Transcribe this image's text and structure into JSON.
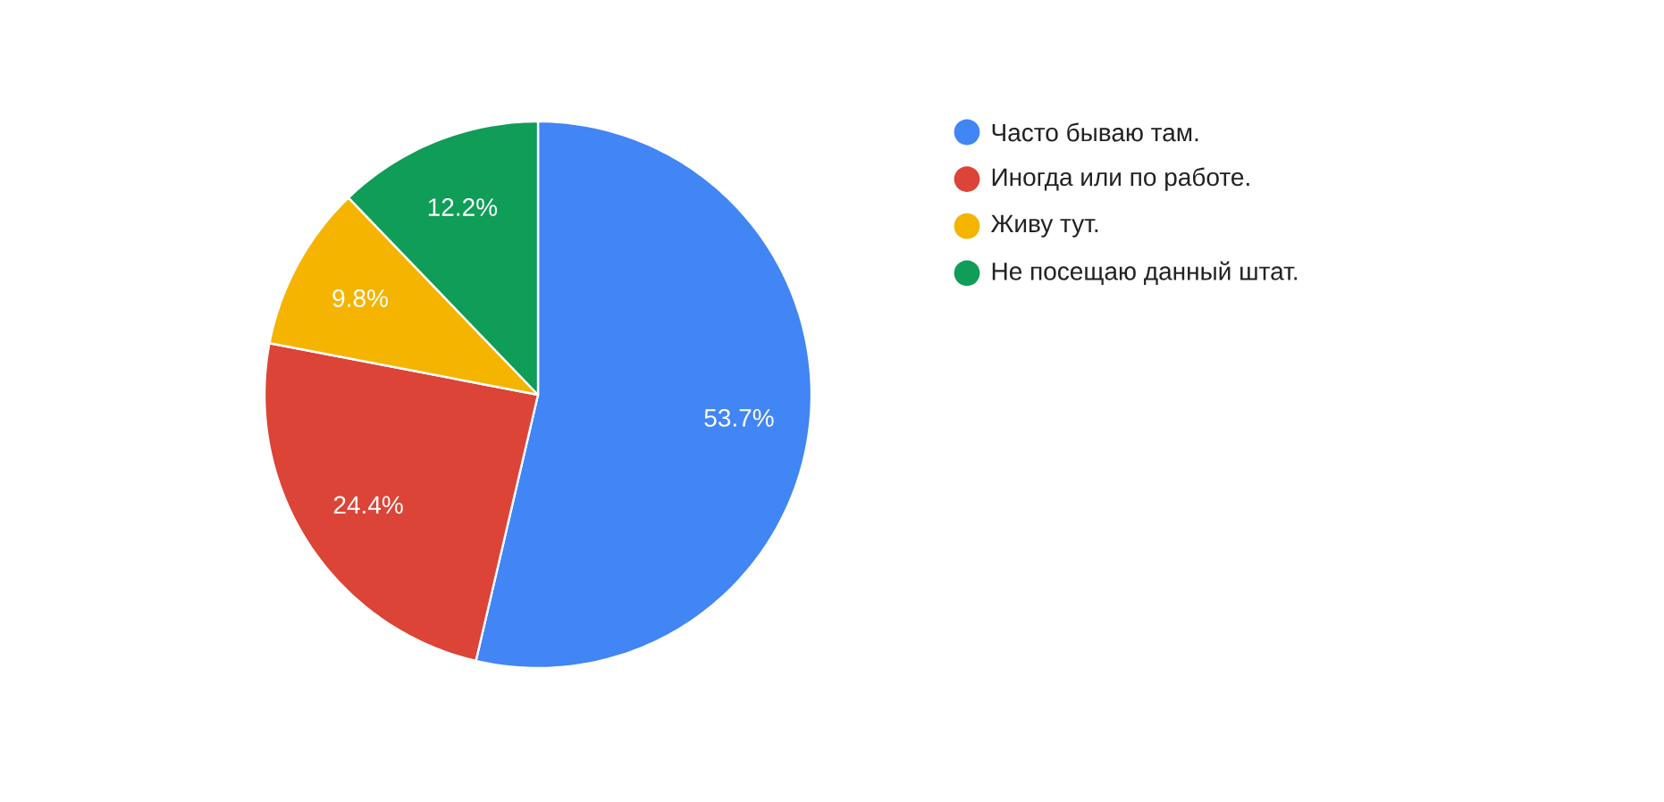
{
  "chart_data": {
    "type": "pie",
    "categories": [
      "Часто бываю там.",
      "Иногда или по работе.",
      "Живу тут.",
      "Не посещаю данный штат."
    ],
    "values": [
      53.7,
      24.4,
      9.8,
      12.2
    ],
    "colors": [
      "#4285f4",
      "#db4437",
      "#f4b400",
      "#0f9d58"
    ],
    "value_labels": [
      "53.7%",
      "24.4%",
      "9.8%",
      "12.2%"
    ],
    "legend": "right"
  }
}
